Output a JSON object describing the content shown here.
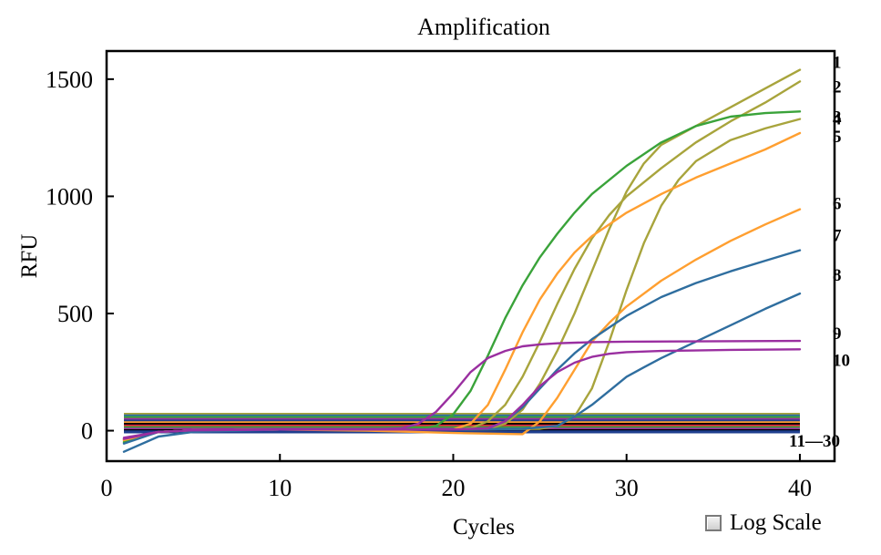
{
  "chart_data": {
    "type": "line",
    "title": "Amplification",
    "xlabel": "Cycles",
    "ylabel": "RFU",
    "xlim": [
      0,
      42
    ],
    "ylim": [
      -130,
      1620
    ],
    "xticks": [
      0,
      10,
      20,
      30,
      40
    ],
    "yticks": [
      0,
      500,
      1000,
      1500
    ],
    "grid": false,
    "series": [
      {
        "label": "1",
        "color": "#a8a43c",
        "points": [
          [
            1,
            -45
          ],
          [
            3,
            -5
          ],
          [
            5,
            2
          ],
          [
            10,
            5
          ],
          [
            15,
            5
          ],
          [
            20,
            5
          ],
          [
            22,
            8
          ],
          [
            23,
            30
          ],
          [
            24,
            90
          ],
          [
            25,
            200
          ],
          [
            26,
            340
          ],
          [
            27,
            500
          ],
          [
            28,
            680
          ],
          [
            29,
            860
          ],
          [
            30,
            1020
          ],
          [
            31,
            1140
          ],
          [
            32,
            1220
          ],
          [
            34,
            1300
          ],
          [
            36,
            1380
          ],
          [
            38,
            1460
          ],
          [
            40,
            1540
          ]
        ]
      },
      {
        "label": "2",
        "color": "#a8a43c",
        "points": [
          [
            1,
            -40
          ],
          [
            3,
            -5
          ],
          [
            5,
            2
          ],
          [
            10,
            5
          ],
          [
            15,
            5
          ],
          [
            20,
            5
          ],
          [
            21,
            10
          ],
          [
            22,
            40
          ],
          [
            23,
            110
          ],
          [
            24,
            230
          ],
          [
            25,
            380
          ],
          [
            26,
            540
          ],
          [
            27,
            690
          ],
          [
            28,
            820
          ],
          [
            29,
            920
          ],
          [
            30,
            1000
          ],
          [
            32,
            1120
          ],
          [
            34,
            1230
          ],
          [
            36,
            1320
          ],
          [
            38,
            1400
          ],
          [
            40,
            1490
          ]
        ]
      },
      {
        "label": "3",
        "color": "#3aa33a",
        "points": [
          [
            1,
            -50
          ],
          [
            3,
            -5
          ],
          [
            5,
            2
          ],
          [
            10,
            5
          ],
          [
            15,
            5
          ],
          [
            18,
            8
          ],
          [
            19,
            20
          ],
          [
            20,
            70
          ],
          [
            21,
            170
          ],
          [
            22,
            320
          ],
          [
            23,
            480
          ],
          [
            24,
            620
          ],
          [
            25,
            740
          ],
          [
            26,
            840
          ],
          [
            27,
            930
          ],
          [
            28,
            1010
          ],
          [
            30,
            1130
          ],
          [
            32,
            1230
          ],
          [
            34,
            1300
          ],
          [
            36,
            1340
          ],
          [
            38,
            1355
          ],
          [
            40,
            1362
          ]
        ]
      },
      {
        "label": "4",
        "color": "#a8a43c",
        "points": [
          [
            1,
            -35
          ],
          [
            3,
            -5
          ],
          [
            5,
            2
          ],
          [
            10,
            5
          ],
          [
            15,
            5
          ],
          [
            20,
            5
          ],
          [
            25,
            8
          ],
          [
            26,
            20
          ],
          [
            27,
            60
          ],
          [
            28,
            180
          ],
          [
            29,
            380
          ],
          [
            30,
            600
          ],
          [
            31,
            800
          ],
          [
            32,
            960
          ],
          [
            33,
            1070
          ],
          [
            34,
            1150
          ],
          [
            36,
            1240
          ],
          [
            38,
            1290
          ],
          [
            40,
            1330
          ]
        ]
      },
      {
        "label": "5",
        "color": "#ff9f30",
        "points": [
          [
            1,
            -40
          ],
          [
            3,
            -5
          ],
          [
            5,
            2
          ],
          [
            10,
            5
          ],
          [
            15,
            5
          ],
          [
            20,
            5
          ],
          [
            21,
            30
          ],
          [
            22,
            110
          ],
          [
            23,
            260
          ],
          [
            24,
            420
          ],
          [
            25,
            560
          ],
          [
            26,
            670
          ],
          [
            27,
            760
          ],
          [
            28,
            830
          ],
          [
            29,
            880
          ],
          [
            30,
            930
          ],
          [
            32,
            1010
          ],
          [
            34,
            1080
          ],
          [
            36,
            1140
          ],
          [
            38,
            1200
          ],
          [
            40,
            1270
          ]
        ]
      },
      {
        "label": "6",
        "color": "#ff9f30",
        "points": [
          [
            1,
            -38
          ],
          [
            3,
            -5
          ],
          [
            5,
            2
          ],
          [
            10,
            5
          ],
          [
            15,
            0
          ],
          [
            20,
            -10
          ],
          [
            24,
            -15
          ],
          [
            25,
            40
          ],
          [
            26,
            140
          ],
          [
            27,
            260
          ],
          [
            28,
            380
          ],
          [
            29,
            460
          ],
          [
            30,
            530
          ],
          [
            32,
            640
          ],
          [
            34,
            730
          ],
          [
            36,
            810
          ],
          [
            38,
            880
          ],
          [
            40,
            945
          ]
        ]
      },
      {
        "label": "7",
        "color": "#2f6e9f",
        "points": [
          [
            1,
            -55
          ],
          [
            3,
            -5
          ],
          [
            5,
            2
          ],
          [
            10,
            5
          ],
          [
            15,
            5
          ],
          [
            20,
            5
          ],
          [
            22,
            10
          ],
          [
            23,
            40
          ],
          [
            24,
            100
          ],
          [
            25,
            180
          ],
          [
            26,
            260
          ],
          [
            27,
            330
          ],
          [
            28,
            390
          ],
          [
            29,
            440
          ],
          [
            30,
            490
          ],
          [
            32,
            570
          ],
          [
            34,
            630
          ],
          [
            36,
            680
          ],
          [
            38,
            725
          ],
          [
            40,
            770
          ]
        ]
      },
      {
        "label": "8",
        "color": "#2f6e9f",
        "points": [
          [
            1,
            -90
          ],
          [
            3,
            -25
          ],
          [
            5,
            -5
          ],
          [
            10,
            5
          ],
          [
            15,
            5
          ],
          [
            20,
            5
          ],
          [
            24,
            8
          ],
          [
            26,
            20
          ],
          [
            27,
            60
          ],
          [
            28,
            110
          ],
          [
            29,
            170
          ],
          [
            30,
            230
          ],
          [
            31,
            270
          ],
          [
            32,
            310
          ],
          [
            34,
            380
          ],
          [
            36,
            450
          ],
          [
            38,
            520
          ],
          [
            40,
            585
          ]
        ]
      },
      {
        "label": "9",
        "color": "#9a2fa0",
        "points": [
          [
            1,
            -35
          ],
          [
            3,
            -5
          ],
          [
            5,
            2
          ],
          [
            10,
            5
          ],
          [
            15,
            5
          ],
          [
            17,
            10
          ],
          [
            18,
            30
          ],
          [
            19,
            80
          ],
          [
            20,
            160
          ],
          [
            21,
            250
          ],
          [
            22,
            310
          ],
          [
            23,
            340
          ],
          [
            24,
            360
          ],
          [
            25,
            368
          ],
          [
            26,
            373
          ],
          [
            28,
            378
          ],
          [
            30,
            380
          ],
          [
            34,
            381
          ],
          [
            40,
            383
          ]
        ]
      },
      {
        "label": "10",
        "color": "#9a2fa0",
        "points": [
          [
            1,
            -30
          ],
          [
            3,
            -5
          ],
          [
            5,
            2
          ],
          [
            10,
            5
          ],
          [
            15,
            5
          ],
          [
            20,
            5
          ],
          [
            22,
            10
          ],
          [
            23,
            40
          ],
          [
            24,
            110
          ],
          [
            25,
            190
          ],
          [
            26,
            250
          ],
          [
            27,
            290
          ],
          [
            28,
            315
          ],
          [
            29,
            328
          ],
          [
            30,
            335
          ],
          [
            32,
            340
          ],
          [
            36,
            345
          ],
          [
            40,
            347
          ]
        ]
      }
    ],
    "baseline_group": {
      "label": "11—30",
      "lines": [
        {
          "y": 70,
          "color": "#a8a43c"
        },
        {
          "y": 63,
          "color": "#2f6e9f"
        },
        {
          "y": 56,
          "color": "#3aa33a"
        },
        {
          "y": 48,
          "color": "#9a2fa0"
        },
        {
          "y": 41,
          "color": "#1f3f8f"
        },
        {
          "y": 34,
          "color": "#ff9f30"
        },
        {
          "y": 27,
          "color": "#000000"
        },
        {
          "y": 20,
          "color": "#e0263a"
        },
        {
          "y": 13,
          "color": "#3aa33a"
        },
        {
          "y": 6,
          "color": "#9a2fa0"
        },
        {
          "y": 0,
          "color": "#000000"
        },
        {
          "y": -5,
          "color": "#1f3f8f"
        }
      ],
      "x_range": [
        1,
        40
      ]
    }
  },
  "controls": {
    "log_scale_label": "Log Scale",
    "log_scale_checked": false
  }
}
